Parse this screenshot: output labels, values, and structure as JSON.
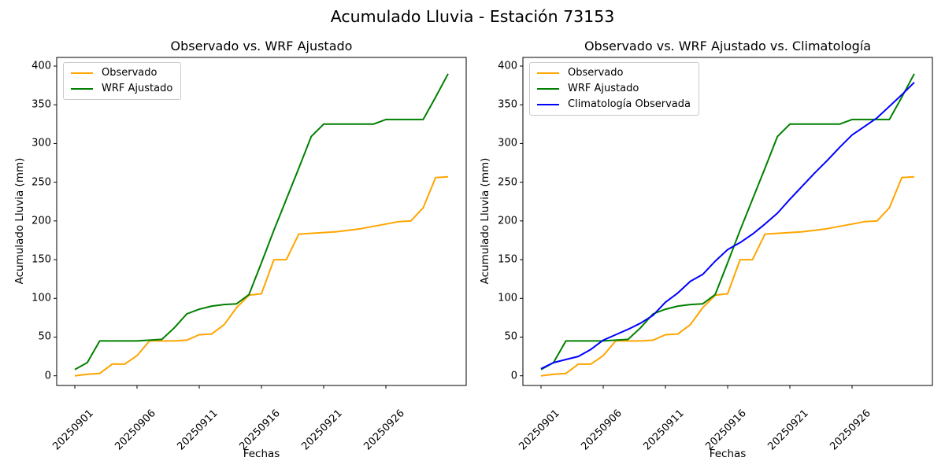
{
  "figure": {
    "title": "Acumulado Lluvia - Estación 73153",
    "background": "#ffffff",
    "text_color": "#000000"
  },
  "axes_shared": {
    "xlabel": "Fechas",
    "ylabel": "Acumulado Lluvia (mm)",
    "yticks": [
      0,
      50,
      100,
      150,
      200,
      250,
      300,
      350,
      400
    ],
    "xtick_indices": [
      0,
      5,
      10,
      15,
      20,
      25
    ],
    "xtick_labels": [
      "20250901",
      "20250906",
      "20250911",
      "20250916",
      "20250921",
      "20250926"
    ],
    "xtick_rotation_deg": 45
  },
  "chart_data": [
    {
      "type": "line",
      "title": "Observado vs. WRF Ajustado",
      "xlabel": "Fechas",
      "ylabel": "Acumulado Lluvia (mm)",
      "ylim": [
        0,
        400
      ],
      "grid": false,
      "legend_position": "upper left",
      "x": [
        "20250901",
        "20250902",
        "20250903",
        "20250904",
        "20250905",
        "20250906",
        "20250907",
        "20250908",
        "20250909",
        "20250910",
        "20250911",
        "20250912",
        "20250913",
        "20250914",
        "20250915",
        "20250916",
        "20250917",
        "20250918",
        "20250919",
        "20250920",
        "20250921",
        "20250922",
        "20250923",
        "20250924",
        "20250925",
        "20250926",
        "20250927",
        "20250928",
        "20250929",
        "20250930",
        "20251001"
      ],
      "series": [
        {
          "name": "Observado",
          "color": "#FFA500",
          "values": [
            0,
            2,
            3,
            15,
            15,
            26,
            45,
            45,
            45,
            46,
            53,
            54,
            66,
            88,
            104,
            106,
            150,
            150,
            183,
            184,
            185,
            186,
            188,
            190,
            193,
            196,
            199,
            200,
            217,
            256,
            257
          ]
        },
        {
          "name": "WRF Ajustado",
          "color": "#008000",
          "values": [
            8,
            17,
            45,
            45,
            45,
            45,
            46,
            47,
            62,
            80,
            86,
            90,
            92,
            93,
            105,
            146,
            188,
            228,
            268,
            309,
            325,
            325,
            325,
            325,
            325,
            331,
            331,
            331,
            331,
            360,
            390
          ]
        }
      ]
    },
    {
      "type": "line",
      "title": "Observado vs. WRF Ajustado vs. Climatología",
      "xlabel": "Fechas",
      "ylabel": "Acumulado Lluvia (mm)",
      "ylim": [
        0,
        400
      ],
      "grid": false,
      "legend_position": "upper left",
      "x": [
        "20250901",
        "20250902",
        "20250903",
        "20250904",
        "20250905",
        "20250906",
        "20250907",
        "20250908",
        "20250909",
        "20250910",
        "20250911",
        "20250912",
        "20250913",
        "20250914",
        "20250915",
        "20250916",
        "20250917",
        "20250918",
        "20250919",
        "20250920",
        "20250921",
        "20250922",
        "20250923",
        "20250924",
        "20250925",
        "20250926",
        "20250927",
        "20250928",
        "20250929",
        "20250930",
        "20251001"
      ],
      "series": [
        {
          "name": "Observado",
          "color": "#FFA500",
          "values": [
            0,
            2,
            3,
            15,
            15,
            26,
            45,
            45,
            45,
            46,
            53,
            54,
            66,
            88,
            104,
            106,
            150,
            150,
            183,
            184,
            185,
            186,
            188,
            190,
            193,
            196,
            199,
            200,
            217,
            256,
            257
          ]
        },
        {
          "name": "WRF Ajustado",
          "color": "#008000",
          "values": [
            8,
            17,
            45,
            45,
            45,
            45,
            46,
            47,
            62,
            80,
            86,
            90,
            92,
            93,
            105,
            146,
            188,
            228,
            268,
            309,
            325,
            325,
            325,
            325,
            325,
            331,
            331,
            331,
            331,
            360,
            390
          ]
        },
        {
          "name": "Climatología Observada",
          "color": "#0000FF",
          "values": [
            9,
            17,
            21,
            25,
            34,
            46,
            53,
            60,
            68,
            78,
            95,
            107,
            122,
            131,
            148,
            163,
            172,
            183,
            196,
            210,
            228,
            245,
            262,
            278,
            295,
            311,
            322,
            333,
            348,
            363,
            379
          ]
        }
      ]
    }
  ]
}
